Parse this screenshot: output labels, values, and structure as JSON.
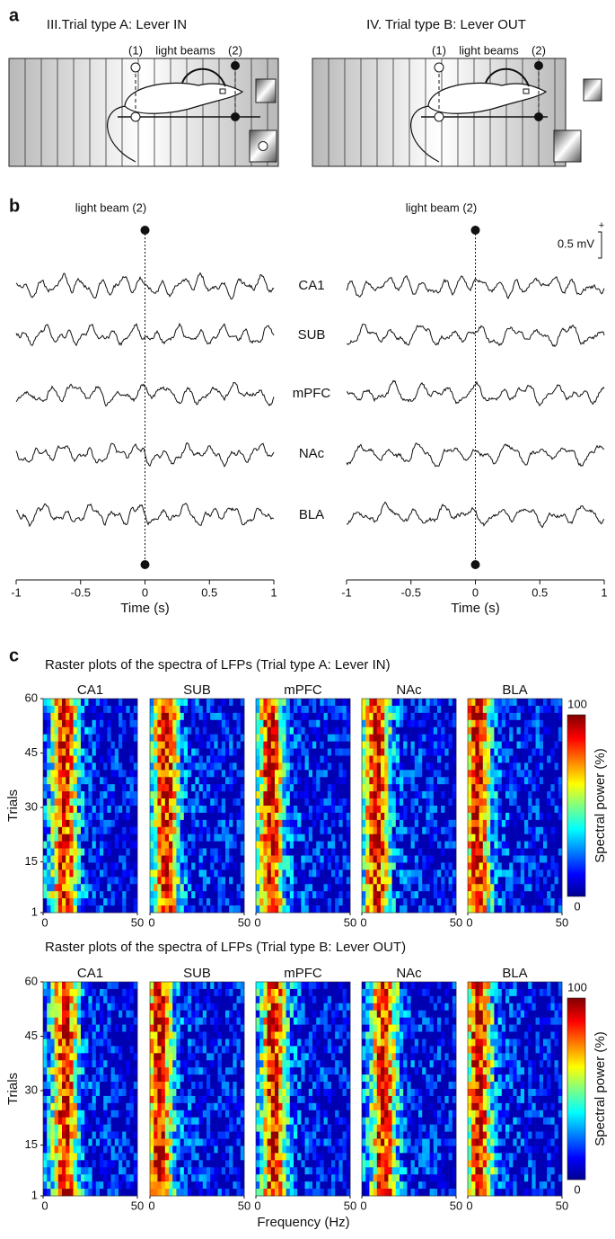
{
  "panel_a": {
    "label": "a",
    "diagrams": [
      {
        "title": "III.Trial type A: Lever IN",
        "beam1": "(1)",
        "beams": "light beams",
        "beam2": "(2)"
      },
      {
        "title": "IV. Trial type B: Lever OUT",
        "beam1": "(1)",
        "beams": "light beams",
        "beam2": "(2)"
      }
    ]
  },
  "panel_b": {
    "label": "b",
    "regions": [
      "CA1",
      "SUB",
      "mPFC",
      "NAc",
      "BLA"
    ],
    "scale_bar": {
      "label": "0.5 mV",
      "polarity": "+"
    },
    "plots": [
      {
        "event_label": "light beam (2)",
        "xlim": [
          -1,
          1
        ],
        "xticks": [
          -1,
          -0.5,
          0,
          0.5,
          1
        ],
        "xlabel": "Time (s)"
      },
      {
        "event_label": "light beam (2)",
        "xlim": [
          -1,
          1
        ],
        "xticks": [
          -1,
          -0.5,
          0,
          0.5,
          1
        ],
        "xlabel": "Time (s)"
      }
    ]
  },
  "panel_c": {
    "label": "c",
    "xlabel": "Frequency (Hz)",
    "rasters": [
      {
        "title": "Raster plots of the spectra of LFPs (Trial type A: Lever IN)",
        "regions": [
          "CA1",
          "SUB",
          "mPFC",
          "NAc",
          "BLA"
        ],
        "ylabel": "Trials",
        "ylim": [
          1,
          60
        ],
        "yticks": [
          60,
          45,
          30,
          15,
          1
        ],
        "xlim": [
          0,
          50
        ],
        "xticks": [
          0,
          50
        ],
        "colorbar": {
          "ticks": [
            100,
            0
          ],
          "label": "Spectral power (%)"
        }
      },
      {
        "title": "Raster plots of the spectra of LFPs (Trial type B: Lever OUT)",
        "regions": [
          "CA1",
          "SUB",
          "mPFC",
          "NAc",
          "BLA"
        ],
        "ylabel": "Trials",
        "ylim": [
          1,
          60
        ],
        "yticks": [
          60,
          45,
          30,
          15,
          1
        ],
        "xlim": [
          0,
          50
        ],
        "xticks": [
          0,
          50
        ],
        "colorbar": {
          "ticks": [
            100,
            0
          ],
          "label": "Spectral power (%)"
        }
      }
    ]
  }
}
